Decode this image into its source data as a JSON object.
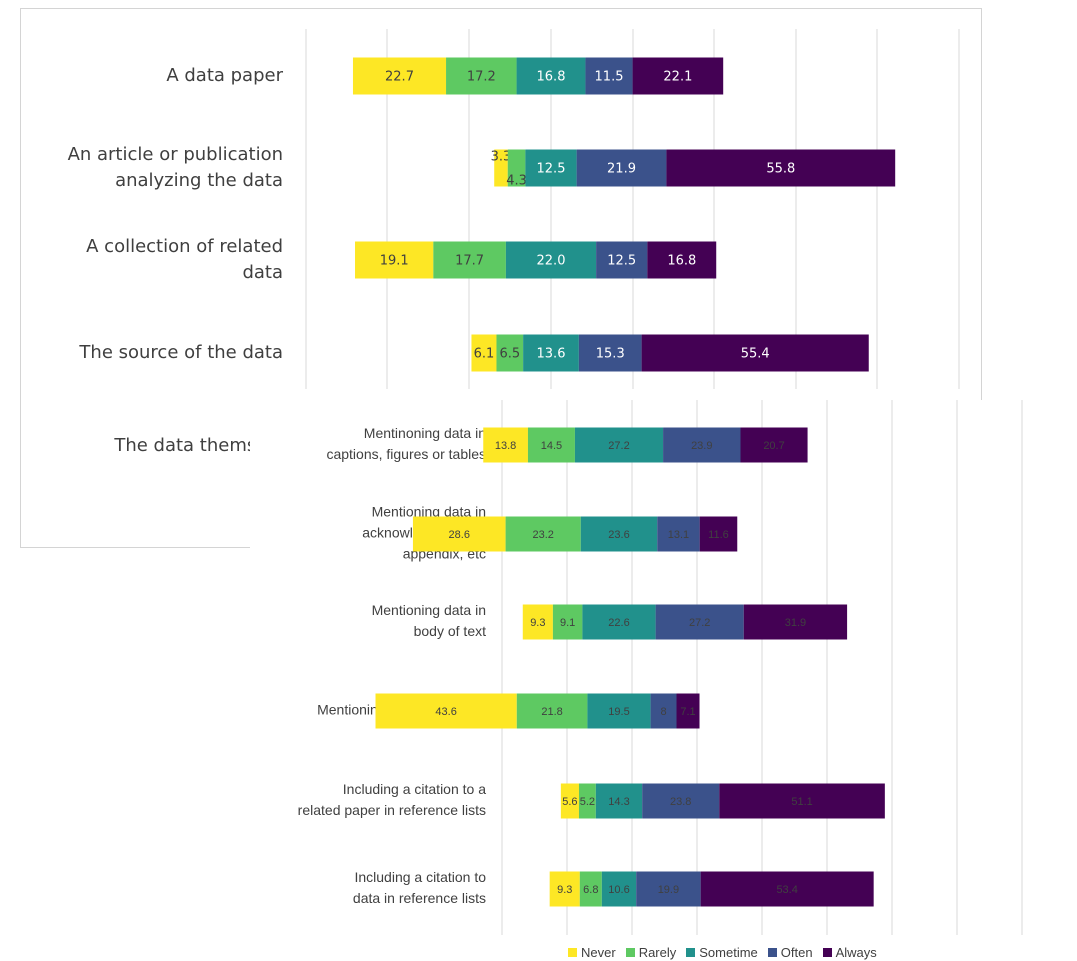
{
  "colors": {
    "Never": "#fde725",
    "Rarely": "#5ec962",
    "Sometime": "#21918c",
    "Often": "#3b528b",
    "Always": "#440154"
  },
  "legend": {
    "items": [
      "Never",
      "Rarely",
      "Sometime",
      "Often",
      "Always"
    ]
  },
  "chart_data": [
    {
      "type": "bar",
      "orientation": "horizontal-stacked",
      "categories": [
        "A data paper",
        "An article or publication analyzing the data",
        "A collection of related data",
        "The source of the data",
        "The data themselv"
      ],
      "series": [
        {
          "name": "Never",
          "values": [
            22.7,
            3.3,
            19.1,
            6.1,
            null
          ]
        },
        {
          "name": "Rarely",
          "values": [
            17.2,
            4.3,
            17.7,
            6.5,
            null
          ]
        },
        {
          "name": "Sometime",
          "values": [
            16.8,
            12.5,
            22.0,
            13.6,
            null
          ]
        },
        {
          "name": "Often",
          "values": [
            11.5,
            21.9,
            12.5,
            15.3,
            null
          ]
        },
        {
          "name": "Always",
          "values": [
            22.1,
            55.8,
            16.8,
            55.4,
            null
          ]
        }
      ],
      "value_labels": [
        [
          "22.7",
          "17.2",
          "16.8",
          "11.5",
          "22.1"
        ],
        [
          "3.3",
          "4.3",
          "12.5",
          "21.9",
          "55.8"
        ],
        [
          "19.1",
          "17.7",
          "22.0",
          "12.5",
          "16.8"
        ],
        [
          "6.1",
          "6.5",
          "13.6",
          "15.3",
          "55.4"
        ],
        []
      ],
      "grid": true
    },
    {
      "type": "bar",
      "orientation": "horizontal-stacked",
      "categories": [
        "Mentinoning data in captions, figures or tables",
        "Mentioning data in acknowledgements, appendix, etc",
        "Mentioning data in body of text",
        "Mentioning data in footnote",
        "Including a citation to a related paper in reference lists",
        "Including a citation to data in reference lists"
      ],
      "series": [
        {
          "name": "Never",
          "values": [
            13.8,
            28.6,
            9.3,
            43.6,
            5.6,
            9.3
          ]
        },
        {
          "name": "Rarely",
          "values": [
            14.5,
            23.2,
            9.1,
            21.8,
            5.2,
            6.8
          ]
        },
        {
          "name": "Sometime",
          "values": [
            27.2,
            23.6,
            22.6,
            19.5,
            14.3,
            10.6
          ]
        },
        {
          "name": "Often",
          "values": [
            23.9,
            13.1,
            27.2,
            8,
            23.8,
            19.9
          ]
        },
        {
          "name": "Always",
          "values": [
            20.7,
            11.6,
            31.9,
            7.1,
            51.1,
            53.4
          ]
        }
      ],
      "value_labels": [
        [
          "13.8",
          "14.5",
          "27.2",
          "23.9",
          "20.7"
        ],
        [
          "28.6",
          "23.2",
          "23.6",
          "13.1",
          "11.6"
        ],
        [
          "9.3",
          "9.1",
          "22.6",
          "27.2",
          "31.9"
        ],
        [
          "43.6",
          "21.8",
          "19.5",
          "8",
          "7.1"
        ],
        [
          "5.6",
          "5.2",
          "14.3",
          "23.8",
          "51.1"
        ],
        [
          "9.3",
          "6.8",
          "10.6",
          "19.9",
          "53.4"
        ]
      ],
      "category_label_lines": [
        [
          "Mentinoning data in",
          "captions, figures or tables"
        ],
        [
          "Mentioning data in",
          "acknowledgements,",
          "appendix, etc"
        ],
        [
          "Mentioning data in",
          "body of text"
        ],
        [
          "Mentioning data in footnote"
        ],
        [
          "Including a citation to a",
          "related paper in reference lists"
        ],
        [
          "Including a citation to",
          "data in reference lists"
        ]
      ],
      "grid": true,
      "legend_position": "bottom"
    }
  ],
  "back_label_lines": [
    [
      "A data paper"
    ],
    [
      "An article or publication",
      "analyzing the data"
    ],
    [
      "A collection of related",
      "data"
    ],
    [
      "The source of the data"
    ],
    [
      "The data themselv"
    ]
  ]
}
